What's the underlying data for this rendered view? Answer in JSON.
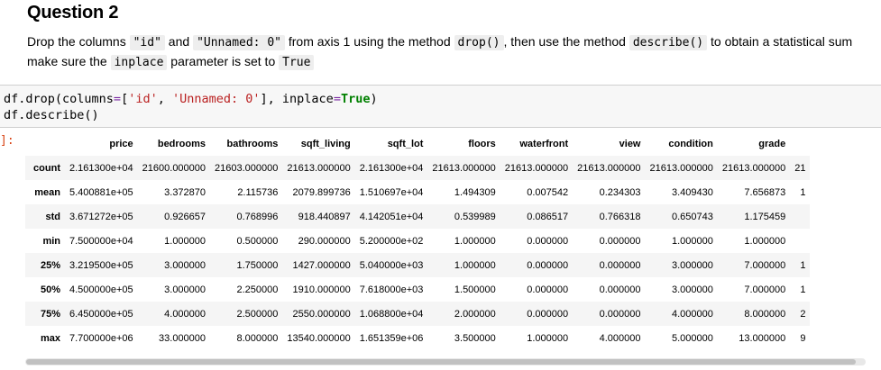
{
  "heading": "Question 2",
  "instructions": {
    "p1": "Drop the columns ",
    "col1": "\"id\"",
    "p2": " and ",
    "col2": "\"Unnamed: 0\"",
    "p3": " from axis 1 using the method ",
    "method1": "drop()",
    "p4": ", then use the method ",
    "method2": "describe()",
    "p5": " to obtain a statistical sum",
    "p6": "make sure the ",
    "param": "inplace",
    "p7": " parameter is set to ",
    "value": "True"
  },
  "code": {
    "l1_a": "df.drop(columns",
    "l1_eq": "=",
    "l1_b": "[",
    "l1_s1": "'id'",
    "l1_c": ", ",
    "l1_s2": "'Unnamed: 0'",
    "l1_d": "], inplace",
    "l1_eq2": "=",
    "l1_true": "True",
    "l1_e": ")",
    "line2": "df.describe()"
  },
  "prompt": "]:",
  "table": {
    "columns": [
      "price",
      "bedrooms",
      "bathrooms",
      "sqft_living",
      "sqft_lot",
      "floors",
      "waterfront",
      "view",
      "condition",
      "grade",
      ""
    ],
    "rows": [
      {
        "label": "count",
        "values": [
          "2.161300e+04",
          "21600.000000",
          "21603.000000",
          "21613.000000",
          "2.161300e+04",
          "21613.000000",
          "21613.000000",
          "21613.000000",
          "21613.000000",
          "21613.000000",
          "21"
        ]
      },
      {
        "label": "mean",
        "values": [
          "5.400881e+05",
          "3.372870",
          "2.115736",
          "2079.899736",
          "1.510697e+04",
          "1.494309",
          "0.007542",
          "0.234303",
          "3.409430",
          "7.656873",
          "1"
        ]
      },
      {
        "label": "std",
        "values": [
          "3.671272e+05",
          "0.926657",
          "0.768996",
          "918.440897",
          "4.142051e+04",
          "0.539989",
          "0.086517",
          "0.766318",
          "0.650743",
          "1.175459",
          ""
        ]
      },
      {
        "label": "min",
        "values": [
          "7.500000e+04",
          "1.000000",
          "0.500000",
          "290.000000",
          "5.200000e+02",
          "1.000000",
          "0.000000",
          "0.000000",
          "1.000000",
          "1.000000",
          ""
        ]
      },
      {
        "label": "25%",
        "values": [
          "3.219500e+05",
          "3.000000",
          "1.750000",
          "1427.000000",
          "5.040000e+03",
          "1.000000",
          "0.000000",
          "0.000000",
          "3.000000",
          "7.000000",
          "1"
        ]
      },
      {
        "label": "50%",
        "values": [
          "4.500000e+05",
          "3.000000",
          "2.250000",
          "1910.000000",
          "7.618000e+03",
          "1.500000",
          "0.000000",
          "0.000000",
          "3.000000",
          "7.000000",
          "1"
        ]
      },
      {
        "label": "75%",
        "values": [
          "6.450000e+05",
          "4.000000",
          "2.500000",
          "2550.000000",
          "1.068800e+04",
          "2.000000",
          "0.000000",
          "0.000000",
          "4.000000",
          "8.000000",
          "2"
        ]
      },
      {
        "label": "max",
        "values": [
          "7.700000e+06",
          "33.000000",
          "8.000000",
          "13540.000000",
          "1.651359e+06",
          "3.500000",
          "1.000000",
          "4.000000",
          "5.000000",
          "13.000000",
          "9"
        ]
      }
    ]
  }
}
